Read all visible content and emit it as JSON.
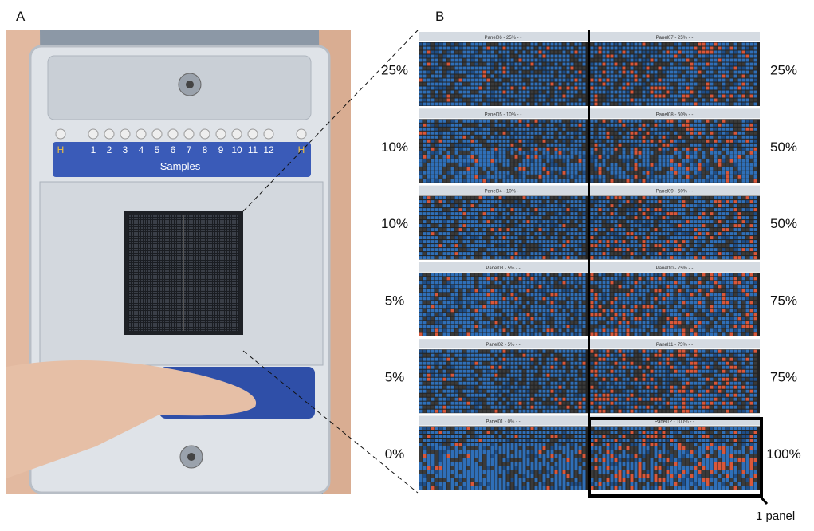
{
  "figure": {
    "label_a": "A",
    "label_b": "B",
    "chip": {
      "sample_labels": [
        "H",
        "1",
        "2",
        "3",
        "4",
        "5",
        "6",
        "7",
        "8",
        "9",
        "10",
        "11",
        "12",
        "H"
      ],
      "caption": "Samples"
    },
    "rows": [
      {
        "left": "25%",
        "right": "25%",
        "panels": [
          "Panel06 - 25% - -",
          "Panel07 - 25% - -"
        ]
      },
      {
        "left": "10%",
        "right": "50%",
        "panels": [
          "Panel05 - 10% - -",
          "Panel08 - 50% - -"
        ]
      },
      {
        "left": "10%",
        "right": "50%",
        "panels": [
          "Panel04 - 10% - -",
          "Panel09 - 50% - -"
        ]
      },
      {
        "left": "5%",
        "right": "75%",
        "panels": [
          "Panel03 - 5% - -",
          "Panel10 - 75% - -"
        ]
      },
      {
        "left": "5%",
        "right": "75%",
        "panels": [
          "Panel02 - 5% - -",
          "Panel11 - 75% - -"
        ]
      },
      {
        "left": "0%",
        "right": "100%",
        "panels": [
          "Panel01 - 0% - -",
          "Panel12 - 100% - -"
        ]
      }
    ],
    "callout": "1 panel"
  }
}
